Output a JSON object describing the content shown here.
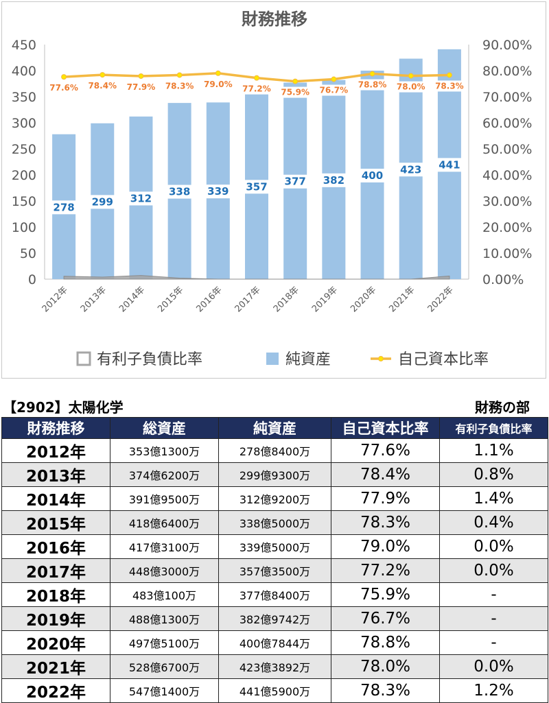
{
  "chart_data": {
    "type": "bar",
    "title": "財務推移",
    "categories": [
      "2012年",
      "2013年",
      "2014年",
      "2015年",
      "2016年",
      "2017年",
      "2018年",
      "2019年",
      "2020年",
      "2021年",
      "2022年"
    ],
    "series": [
      {
        "name": "有利子負債比率",
        "type": "area",
        "axis": "right",
        "color": "#a6a6a6",
        "values": [
          1.1,
          0.8,
          1.4,
          0.4,
          0.0,
          0.0,
          0,
          0,
          0,
          0.0,
          1.2
        ]
      },
      {
        "name": "純資産",
        "type": "bar",
        "axis": "left",
        "color": "#9dc3e6",
        "values": [
          278,
          299,
          312,
          338,
          339,
          357,
          377,
          382,
          400,
          423,
          441
        ],
        "labels": [
          "278",
          "299",
          "312",
          "338",
          "339",
          "357",
          "377",
          "382",
          "400",
          "423",
          "441"
        ]
      },
      {
        "name": "自己資本比率",
        "type": "line",
        "axis": "right",
        "color": "#f4b942",
        "values": [
          77.6,
          78.4,
          77.9,
          78.3,
          79.0,
          77.2,
          75.9,
          76.7,
          78.8,
          78.0,
          78.3
        ],
        "labels": [
          "77.6%",
          "78.4%",
          "77.9%",
          "78.3%",
          "79.0%",
          "77.2%",
          "75.9%",
          "76.7%",
          "78.8%",
          "78.0%",
          "78.3%"
        ]
      }
    ],
    "ylim": [
      0,
      450
    ],
    "y2lim": [
      0,
      90
    ],
    "yticks": [
      "0",
      "50",
      "100",
      "150",
      "200",
      "250",
      "300",
      "350",
      "400",
      "450"
    ],
    "y2ticks": [
      "0.00%",
      "10.00%",
      "20.00%",
      "30.00%",
      "40.00%",
      "50.00%",
      "60.00%",
      "70.00%",
      "80.00%",
      "90.00%"
    ],
    "grid": false,
    "legend": "bottom"
  },
  "header": {
    "company": "【2902】太陽化学",
    "section": "財務の部"
  },
  "table": {
    "headers": [
      "財務推移",
      "総資産",
      "純資産",
      "自己資本比率",
      "有利子負債比率"
    ],
    "rows": [
      {
        "year": "2012年",
        "total": "353億1300万",
        "net": "278億8400万",
        "equity": "77.6%",
        "debt": "1.1%"
      },
      {
        "year": "2013年",
        "total": "374億6200万",
        "net": "299億9300万",
        "equity": "78.4%",
        "debt": "0.8%"
      },
      {
        "year": "2014年",
        "total": "391億9500万",
        "net": "312億9200万",
        "equity": "77.9%",
        "debt": "1.4%"
      },
      {
        "year": "2015年",
        "total": "418億6400万",
        "net": "338億5000万",
        "equity": "78.3%",
        "debt": "0.4%"
      },
      {
        "year": "2016年",
        "total": "417億3100万",
        "net": "339億5000万",
        "equity": "79.0%",
        "debt": "0.0%"
      },
      {
        "year": "2017年",
        "total": "448億3000万",
        "net": "357億3500万",
        "equity": "77.2%",
        "debt": "0.0%"
      },
      {
        "year": "2018年",
        "total": "483億100万",
        "net": "377億8400万",
        "equity": "75.9%",
        "debt": "-"
      },
      {
        "year": "2019年",
        "total": "488億1300万",
        "net": "382億9742万",
        "equity": "76.7%",
        "debt": "-"
      },
      {
        "year": "2020年",
        "total": "497億5100万",
        "net": "400億7844万",
        "equity": "78.8%",
        "debt": "-"
      },
      {
        "year": "2021年",
        "total": "528億6700万",
        "net": "423億3892万",
        "equity": "78.0%",
        "debt": "0.0%"
      },
      {
        "year": "2022年",
        "total": "547億1400万",
        "net": "441億5900万",
        "equity": "78.3%",
        "debt": "1.2%"
      }
    ]
  }
}
